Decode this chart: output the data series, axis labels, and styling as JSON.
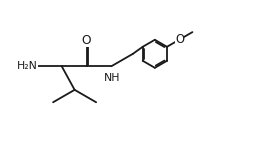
{
  "background_color": "#ffffff",
  "line_color": "#1a1a1a",
  "text_color": "#1a1a1a",
  "line_width": 1.3,
  "font_size": 7.8,
  "fig_width": 2.68,
  "fig_height": 1.46,
  "dpi": 100,
  "xlim": [
    -0.5,
    10.5
  ],
  "ylim": [
    -0.2,
    6.2
  ]
}
